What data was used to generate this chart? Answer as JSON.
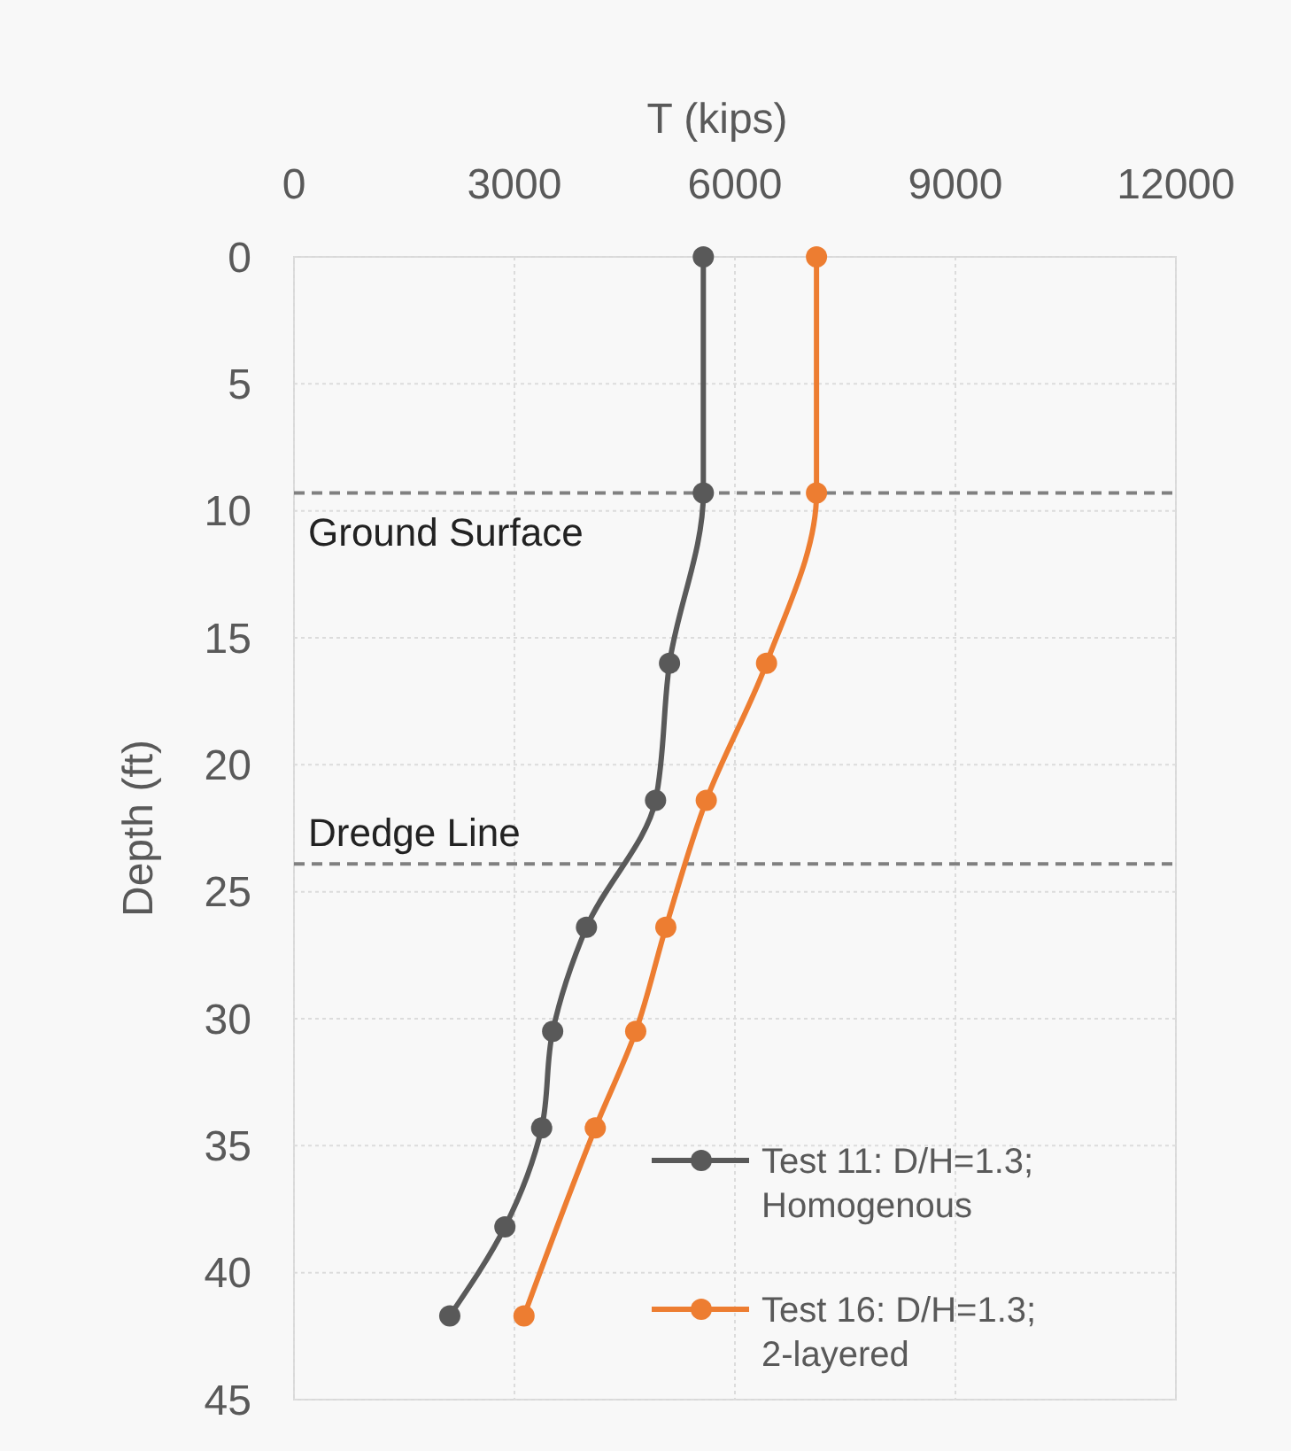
{
  "chart_data": {
    "type": "line",
    "xlabel": "T (kips)",
    "ylabel": "Depth (ft)",
    "xlim": [
      0,
      12000
    ],
    "xticks": [
      0,
      3000,
      6000,
      9000,
      12000
    ],
    "ylim": [
      45,
      0
    ],
    "yticks": [
      0,
      5,
      10,
      15,
      20,
      25,
      30,
      35,
      40,
      45
    ],
    "grid": true,
    "legend": "bottom right",
    "marker": "circle",
    "line_style": "solid",
    "series": [
      {
        "name": "Test 11: D/H=1.3; Homogenous",
        "color": "#595959",
        "x": [
          5570,
          5570,
          5110,
          4920,
          3980,
          3520,
          3370,
          2870,
          2120
        ],
        "values": [
          0,
          9.3,
          16,
          21.4,
          26.4,
          30.5,
          34.3,
          38.2,
          41.7
        ]
      },
      {
        "name": "Test 16: D/H=1.3; 2-layered",
        "color": "#ed7d31",
        "x": [
          7110,
          7110,
          6430,
          5610,
          5060,
          4650,
          4100,
          3130
        ],
        "values": [
          0,
          9.3,
          16,
          21.4,
          26.4,
          30.5,
          34.3,
          41.7
        ]
      }
    ],
    "ref_lines": [
      {
        "axis": "y",
        "value": 9.3,
        "label": "Ground Surface",
        "line_style": "dashed",
        "color": "#808080"
      },
      {
        "axis": "y",
        "value": 23.9,
        "label": "Dredge Line",
        "line_style": "dashed",
        "color": "#808080"
      }
    ]
  }
}
